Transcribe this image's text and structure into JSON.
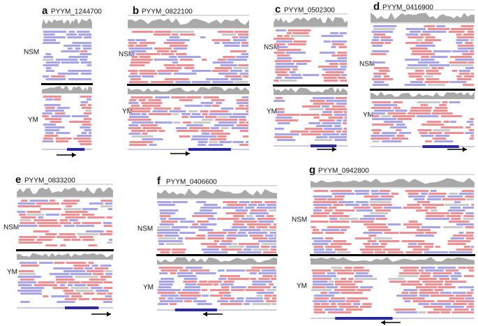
{
  "panels": [
    {
      "letter": "a",
      "gene": "PYYM_1244700",
      "top_label": "NSM",
      "bottom_label": "YM"
    },
    {
      "letter": "b",
      "gene": "PYYM_0822100",
      "top_label": "NSM",
      "bottom_label": "YM"
    },
    {
      "letter": "c",
      "gene": "PYYM_0502300",
      "top_label": "NSM",
      "bottom_label": "YM"
    },
    {
      "letter": "d",
      "gene": "PYYM_0416900",
      "top_label": "NSM",
      "bottom_label": "YM"
    },
    {
      "letter": "e",
      "gene": "PYYM_0833200",
      "top_label": "NSM",
      "bottom_label": "YM"
    },
    {
      "letter": "f",
      "gene": "PYYM_0406600",
      "top_label": "NSM",
      "bottom_label": "YM"
    },
    {
      "letter": "g",
      "gene": "PYYM_0942800",
      "top_label": "NSM",
      "bottom_label": "YM"
    }
  ]
}
